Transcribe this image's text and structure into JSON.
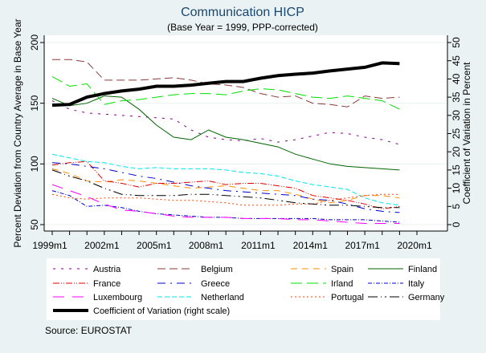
{
  "chart_data": {
    "type": "line",
    "title": "Communication HICP",
    "subtitle": "(Base Year = 1999, PPP-corrected)",
    "xlabel": "",
    "ylabel": "Percent Deviation from Country Average in Base Year",
    "ylabel_right": "Coefficient of Variation in Percent",
    "ylim": [
      50,
      200
    ],
    "ylim_right": [
      0,
      50
    ],
    "xlim": [
      1999,
      2020
    ],
    "x_tick_labels": [
      "1999m1",
      "2002m1",
      "2005m1",
      "2008m1",
      "2011m1",
      "2014m1",
      "2017m1",
      "2020m1"
    ],
    "x_tick_values": [
      1999,
      2002,
      2005,
      2008,
      2011,
      2014,
      2017,
      2020
    ],
    "y_ticks": [
      "50",
      "100",
      "150",
      "200"
    ],
    "y_tick_values": [
      50,
      100,
      150,
      200
    ],
    "y_right_ticks": [
      "0",
      "5",
      "10",
      "15",
      "20",
      "25",
      "30",
      "35",
      "40",
      "45",
      "50"
    ],
    "y_right_tick_values": [
      0,
      5,
      10,
      15,
      20,
      25,
      30,
      35,
      40,
      45,
      50
    ],
    "grid": true,
    "legend_position": "bottom",
    "x": [
      1999,
      2000,
      2001,
      2002,
      2003,
      2004,
      2005,
      2006,
      2007,
      2008,
      2009,
      2010,
      2011,
      2012,
      2013,
      2014,
      2015,
      2016,
      2017,
      2018,
      2019
    ],
    "series": [
      {
        "name": "Austria",
        "color": "#800080",
        "dash": "3,7",
        "width": 1,
        "axis": "left",
        "values": [
          152,
          145,
          142,
          141,
          140,
          139,
          138,
          137,
          128,
          122,
          120,
          119,
          121,
          118,
          120,
          123,
          126,
          125,
          122,
          120,
          116
        ]
      },
      {
        "name": "Belgium",
        "color": "#8b3a3a",
        "dash": "10,5",
        "width": 1,
        "axis": "left",
        "values": [
          186,
          186,
          184,
          169,
          169,
          169,
          170,
          171,
          169,
          166,
          165,
          163,
          158,
          155,
          156,
          150,
          149,
          147,
          156,
          154,
          155
        ]
      },
      {
        "name": "Spain",
        "color": "#ff8c00",
        "dash": "8,6",
        "width": 1,
        "axis": "left",
        "values": [
          96,
          92,
          86,
          85,
          87,
          86,
          84,
          82,
          80,
          81,
          82,
          80,
          78,
          78,
          75,
          71,
          68,
          70,
          74,
          74,
          72
        ]
      },
      {
        "name": "Finland",
        "color": "#006400",
        "dash": "",
        "width": 1,
        "axis": "left",
        "values": [
          154,
          148,
          150,
          156,
          155,
          145,
          132,
          122,
          120,
          128,
          122,
          120,
          117,
          114,
          108,
          104,
          100,
          98,
          97,
          96,
          95
        ]
      },
      {
        "name": "France",
        "color": "#e00000",
        "dash": "8,2,1,2,1,2",
        "width": 1,
        "axis": "left",
        "values": [
          99,
          101,
          102,
          86,
          84,
          81,
          84,
          84,
          85,
          86,
          83,
          84,
          84,
          82,
          80,
          74,
          72,
          70,
          67,
          63,
          65
        ]
      },
      {
        "name": "Greece",
        "color": "#0000cd",
        "dash": "10,6,2,6",
        "width": 1,
        "axis": "left",
        "values": [
          101,
          100,
          98,
          96,
          93,
          90,
          88,
          85,
          82,
          80,
          78,
          77,
          76,
          75,
          74,
          71,
          70,
          67,
          63,
          61,
          60
        ]
      },
      {
        "name": "Irland",
        "color": "#00e000",
        "dash": "14,6",
        "width": 1,
        "axis": "left",
        "values": [
          172,
          164,
          166,
          149,
          152,
          153,
          155,
          157,
          158,
          158,
          157,
          160,
          162,
          161,
          158,
          155,
          154,
          156,
          154,
          152,
          145
        ]
      },
      {
        "name": "Italy",
        "color": "#0000cd",
        "dash": "5,2,1,2",
        "width": 1,
        "axis": "left",
        "values": [
          78,
          74,
          65,
          66,
          64,
          61,
          59,
          58,
          57,
          56,
          56,
          55,
          55,
          55,
          55,
          55,
          54,
          54,
          54,
          53,
          52
        ]
      },
      {
        "name": "Luxembourg",
        "color": "#ff00ff",
        "dash": "14,10",
        "width": 1,
        "axis": "left",
        "values": [
          83,
          78,
          73,
          67,
          62,
          61,
          59,
          57,
          56,
          56,
          56,
          55,
          55,
          55,
          54,
          54,
          53,
          52,
          51,
          51,
          51
        ]
      },
      {
        "name": "Netherland",
        "color": "#00e5ee",
        "dash": "6,3",
        "width": 1,
        "axis": "left",
        "values": [
          108,
          105,
          102,
          101,
          98,
          96,
          97,
          96,
          96,
          96,
          95,
          93,
          92,
          90,
          86,
          83,
          81,
          79,
          72,
          68,
          66
        ]
      },
      {
        "name": "Portugal",
        "color": "#ff4500",
        "dash": "2,3",
        "width": 1,
        "axis": "left",
        "values": [
          75,
          72,
          71,
          72,
          72,
          72,
          71,
          70,
          70,
          69,
          68,
          66,
          66,
          66,
          67,
          67,
          70,
          72,
          74,
          75,
          75
        ]
      },
      {
        "name": "Germany",
        "color": "#000000",
        "dash": "12,4,1,4,2,4",
        "width": 1,
        "axis": "left",
        "values": [
          95,
          90,
          86,
          80,
          75,
          74,
          74,
          74,
          75,
          75,
          74,
          73,
          72,
          70,
          68,
          67,
          66,
          66,
          65,
          64,
          64
        ]
      },
      {
        "name": "Coefficient of Variation (right scale)",
        "color": "#000000",
        "dash": "",
        "width": 4,
        "axis": "right",
        "values": [
          32.8,
          33.0,
          35.0,
          36.0,
          36.7,
          37.2,
          38.0,
          38.0,
          38.3,
          38.8,
          39.3,
          39.3,
          40.2,
          40.9,
          41.3,
          41.6,
          42.2,
          42.7,
          43.2,
          44.4,
          44.2
        ]
      }
    ],
    "legend_rows": [
      [
        "Austria",
        "Belgium",
        "Spain",
        "Finland"
      ],
      [
        "France",
        "Greece",
        "Irland",
        "Italy"
      ],
      [
        "Luxembourg",
        "Netherland",
        "Portugal",
        "Germany"
      ],
      [
        "Coefficient of Variation (right scale)"
      ]
    ],
    "note": "Source: EUROSTAT"
  }
}
